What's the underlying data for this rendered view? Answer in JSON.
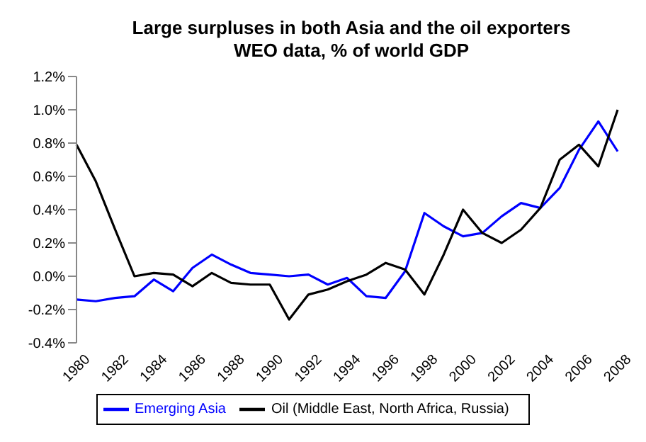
{
  "chart_data": {
    "type": "line",
    "title": "Large surpluses in both Asia and the oil exporters\nWEO data, % of world GDP",
    "categories": [
      "1980",
      null,
      "1982",
      null,
      "1984",
      null,
      "1986",
      null,
      "1988",
      null,
      "1990",
      null,
      "1992",
      null,
      "1994",
      null,
      "1996",
      null,
      "1998",
      null,
      "2000",
      null,
      "2002",
      null,
      "2004",
      null,
      "2006",
      null,
      "2008"
    ],
    "series": [
      {
        "name": "Emerging Asia",
        "color": "#0000ff",
        "values": [
          -0.14,
          -0.15,
          -0.13,
          -0.12,
          -0.02,
          -0.09,
          0.05,
          0.13,
          0.07,
          0.02,
          0.01,
          0.0,
          0.01,
          -0.05,
          -0.01,
          -0.12,
          -0.13,
          0.03,
          0.38,
          0.3,
          0.24,
          0.26,
          0.36,
          0.44,
          0.41,
          0.53,
          0.76,
          0.93,
          0.75
        ]
      },
      {
        "name": "Oil (Middle East, North Africa, Russia)",
        "color": "#000000",
        "values": [
          0.79,
          0.57,
          0.28,
          0.0,
          0.02,
          0.01,
          -0.06,
          0.02,
          -0.04,
          -0.05,
          -0.05,
          -0.26,
          -0.11,
          -0.08,
          -0.03,
          0.01,
          0.08,
          0.04,
          -0.11,
          0.13,
          0.4,
          0.26,
          0.2,
          0.28,
          0.41,
          0.7,
          0.79,
          0.66,
          1.0
        ]
      }
    ],
    "ylim": [
      -0.4,
      1.2
    ],
    "yticks": [
      {
        "value": -0.4,
        "label": "-0.4%"
      },
      {
        "value": -0.2,
        "label": "-0.2%"
      },
      {
        "value": 0,
        "label": "0.0%"
      },
      {
        "value": 0.2,
        "label": "0.2%"
      },
      {
        "value": 0.4,
        "label": "0.4%"
      },
      {
        "value": 0.6,
        "label": "0.6%"
      },
      {
        "value": 0.8,
        "label": "0.8%"
      },
      {
        "value": 1.0,
        "label": "1.0%"
      },
      {
        "value": 1.2,
        "label": "1.2%"
      }
    ],
    "grid": false,
    "legend": "bottom",
    "marker": "none",
    "line_style": "solid"
  }
}
